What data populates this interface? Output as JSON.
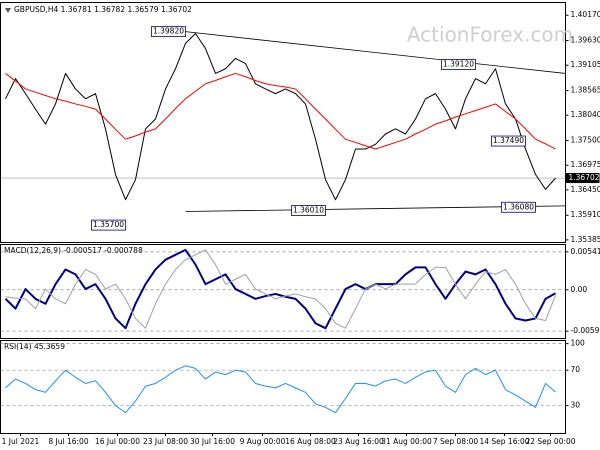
{
  "chart_data": [
    {
      "type": "line",
      "title": "GBPUSD,H4 1.36781 1.36782 1.36579 1.36702",
      "watermark": "ActionForex.com",
      "x": [
        0,
        1,
        2,
        3,
        4,
        5,
        6,
        7,
        8,
        9,
        10,
        11,
        12,
        13,
        14,
        15,
        16,
        17,
        18,
        19,
        20,
        21,
        22,
        23,
        24,
        25,
        26,
        27,
        28,
        29,
        30,
        31,
        32,
        33,
        34,
        35,
        36,
        37,
        38,
        39,
        40,
        41,
        42,
        43,
        44,
        45,
        46,
        47,
        48,
        49,
        50,
        51,
        52,
        53,
        54,
        55
      ],
      "xlim": [
        -0.5,
        56
      ],
      "ylim": [
        1.3534,
        1.4043
      ],
      "yticks": [
        {
          "value": 1.4017,
          "label": "1.40170"
        },
        {
          "value": 1.3963,
          "label": "1.39630"
        },
        {
          "value": 1.39105,
          "label": "1.39105"
        },
        {
          "value": 1.38565,
          "label": "1.38565"
        },
        {
          "value": 1.3804,
          "label": "1.38040"
        },
        {
          "value": 1.375,
          "label": "1.37500"
        },
        {
          "value": 1.36975,
          "label": "1.36975"
        },
        {
          "value": 1.3645,
          "label": "1.36450"
        },
        {
          "value": 1.3591,
          "label": "1.35910"
        },
        {
          "value": 1.35385,
          "label": "1.35385"
        }
      ],
      "grid": false,
      "series": [
        {
          "color": "#000000",
          "values": [
            1.3839,
            1.3882,
            1.385,
            1.3817,
            1.3785,
            1.3828,
            1.3893,
            1.386,
            1.3839,
            1.385,
            1.3775,
            1.3678,
            1.3624,
            1.3667,
            1.3775,
            1.3796,
            1.386,
            1.3903,
            1.3957,
            1.3978,
            1.3946,
            1.3893,
            1.3903,
            1.3925,
            1.3914,
            1.3871,
            1.386,
            1.385,
            1.386,
            1.385,
            1.3828,
            1.3753,
            1.3667,
            1.3624,
            1.3667,
            1.3732,
            1.3732,
            1.3742,
            1.3764,
            1.3775,
            1.3764,
            1.3796,
            1.3839,
            1.385,
            1.3817,
            1.3775,
            1.3839,
            1.3882,
            1.3871,
            1.3903,
            1.3828,
            1.3796,
            1.3732,
            1.3678,
            1.3646,
            1.367
          ]
        },
        {
          "color": "#ff0000",
          "values": [
            1.3893,
            1.3877,
            1.386,
            1.3853,
            1.3846,
            1.3839,
            1.3834,
            1.3828,
            1.3823,
            1.3817,
            1.3796,
            1.3774,
            1.3753,
            1.376,
            1.3768,
            1.3775,
            1.3796,
            1.3818,
            1.3839,
            1.3855,
            1.3871,
            1.3878,
            1.3886,
            1.3893,
            1.3886,
            1.3878,
            1.3871,
            1.3867,
            1.3864,
            1.386,
            1.3839,
            1.3817,
            1.3796,
            1.3774,
            1.3753,
            1.3746,
            1.3739,
            1.3732,
            1.3739,
            1.3746,
            1.3753,
            1.3764,
            1.3774,
            1.3785,
            1.3792,
            1.38,
            1.3807,
            1.3814,
            1.3821,
            1.3828,
            1.3812,
            1.3796,
            1.3775,
            1.3753,
            1.3743,
            1.3732
          ]
        }
      ],
      "trendlines": [
        {
          "x": [
            18,
            56
          ],
          "values": [
            1.3982,
            1.3893
          ]
        },
        {
          "x": [
            18,
            56
          ],
          "values": [
            1.3599,
            1.3611
          ]
        }
      ],
      "annotations": [
        {
          "x": 18,
          "value": 1.3982,
          "label": "1.39820"
        },
        {
          "x": 12,
          "value": 1.357,
          "label": "1.35700"
        },
        {
          "x": 32,
          "value": 1.3601,
          "label": "1.36010"
        },
        {
          "x": 47,
          "value": 1.3912,
          "label": "1.39120"
        },
        {
          "x": 52,
          "value": 1.3749,
          "label": "1.37490"
        },
        {
          "x": 53,
          "value": 1.3608,
          "label": "1.36080"
        }
      ],
      "last_price": {
        "value": 1.36702,
        "label": "1.36702"
      }
    },
    {
      "type": "line",
      "title": "MACD(12,26,9) -0.000517 -0.000788",
      "x": [
        0,
        1,
        2,
        3,
        4,
        5,
        6,
        7,
        8,
        9,
        10,
        11,
        12,
        13,
        14,
        15,
        16,
        17,
        18,
        19,
        20,
        21,
        22,
        23,
        24,
        25,
        26,
        27,
        28,
        29,
        30,
        31,
        32,
        33,
        34,
        35,
        36,
        37,
        38,
        39,
        40,
        41,
        42,
        43,
        44,
        45,
        46,
        47,
        48,
        49,
        50,
        51,
        52,
        53,
        54,
        55
      ],
      "xlim": [
        -0.5,
        56
      ],
      "ylim": [
        -0.0069,
        0.0064
      ],
      "yticks": [
        0.005419,
        {
          "value": 0,
          "label": "0.00"
        },
        -0.005921
      ],
      "grid": true,
      "series": [
        {
          "color": "#00008b",
          "width": 2,
          "values": [
            -0.0013,
            -0.0027,
            0.0001,
            -0.0013,
            -0.002,
            0.0008,
            0.0029,
            0.0022,
            0.0001,
            0.0008,
            -0.0013,
            -0.0041,
            -0.0055,
            -0.002,
            0.0008,
            0.0029,
            0.0043,
            0.005,
            0.0057,
            0.0036,
            0.0008,
            0.0015,
            0.0022,
            0.0001,
            -0.0006,
            -0.0013,
            -0.0009,
            -0.0006,
            -0.001,
            -0.0013,
            -0.0027,
            -0.0048,
            -0.0055,
            -0.0027,
            0.0001,
            0.0008,
            0.0001,
            0.0008,
            0.0008,
            0.0008,
            0.0022,
            0.0032,
            0.0032,
            0.0008,
            -0.0013,
            0.0008,
            0.0026,
            0.0022,
            0.0029,
            0.0008,
            -0.002,
            -0.0041,
            -0.0044,
            -0.0041,
            -0.0013,
            -0.0005
          ]
        },
        {
          "color": "#a0a0a0",
          "width": 1,
          "values": [
            -0.001,
            -0.0012,
            -0.0013,
            -0.0027,
            0.0001,
            -0.0013,
            -0.002,
            0.0008,
            0.0029,
            0.0022,
            0.0001,
            0.0008,
            -0.0013,
            -0.0041,
            -0.0055,
            -0.002,
            0.0008,
            0.0029,
            0.0043,
            0.005,
            0.0057,
            0.0036,
            0.0008,
            0.0015,
            0.0022,
            0.0001,
            -0.0006,
            -0.0013,
            -0.0009,
            -0.0006,
            -0.001,
            -0.0013,
            -0.0027,
            -0.0048,
            -0.0055,
            -0.0027,
            0.0001,
            0.0008,
            0.0001,
            0.0008,
            0.0008,
            0.0008,
            0.0022,
            0.0032,
            0.0032,
            0.0008,
            -0.0013,
            0.0008,
            0.0026,
            0.0022,
            0.0029,
            0.0008,
            -0.002,
            -0.0041,
            -0.0044,
            -0.0008
          ]
        }
      ]
    },
    {
      "type": "line",
      "title": "RSI(14) 45.3659",
      "x": [
        0,
        1,
        2,
        3,
        4,
        5,
        6,
        7,
        8,
        9,
        10,
        11,
        12,
        13,
        14,
        15,
        16,
        17,
        18,
        19,
        20,
        21,
        22,
        23,
        24,
        25,
        26,
        27,
        28,
        29,
        30,
        31,
        32,
        33,
        34,
        35,
        36,
        37,
        38,
        39,
        40,
        41,
        42,
        43,
        44,
        45,
        46,
        47,
        48,
        49,
        50,
        51,
        52,
        53,
        54,
        55
      ],
      "xlim": [
        -0.5,
        56
      ],
      "ylim": [
        -1,
        103
      ],
      "yticks": [
        100,
        70,
        30
      ],
      "grid": true,
      "xticks": [
        {
          "value": 1.5,
          "label": "1 Jul 2021"
        },
        {
          "value": 6.3,
          "label": "8 Jul 16:00"
        },
        {
          "value": 11.2,
          "label": "16 Jul 00:00"
        },
        {
          "value": 16,
          "label": "23 Jul 08:00"
        },
        {
          "value": 20.7,
          "label": "30 Jul 16:00"
        },
        {
          "value": 25.7,
          "label": "9 Aug 00:00"
        },
        {
          "value": 30.5,
          "label": "16 Aug 08:00"
        },
        {
          "value": 35.3,
          "label": "23 Aug 16:00"
        },
        {
          "value": 40.1,
          "label": "31 Aug 00:00"
        },
        {
          "value": 45,
          "label": "7 Sep 08:00"
        },
        {
          "value": 49.9,
          "label": "14 Sep 16:00"
        },
        {
          "value": 54.5,
          "label": "22 Sep 00:00"
        }
      ],
      "series": [
        {
          "color": "#1e90ff",
          "width": 1,
          "values": [
            50,
            60,
            55,
            48,
            45,
            58,
            70,
            62,
            55,
            58,
            45,
            30,
            22,
            35,
            52,
            55,
            62,
            70,
            75,
            72,
            60,
            68,
            65,
            70,
            68,
            55,
            52,
            50,
            55,
            50,
            45,
            32,
            28,
            22,
            38,
            55,
            55,
            52,
            58,
            60,
            55,
            62,
            68,
            70,
            52,
            45,
            65,
            72,
            65,
            70,
            48,
            42,
            35,
            28,
            55,
            45.3659
          ]
        }
      ]
    }
  ]
}
